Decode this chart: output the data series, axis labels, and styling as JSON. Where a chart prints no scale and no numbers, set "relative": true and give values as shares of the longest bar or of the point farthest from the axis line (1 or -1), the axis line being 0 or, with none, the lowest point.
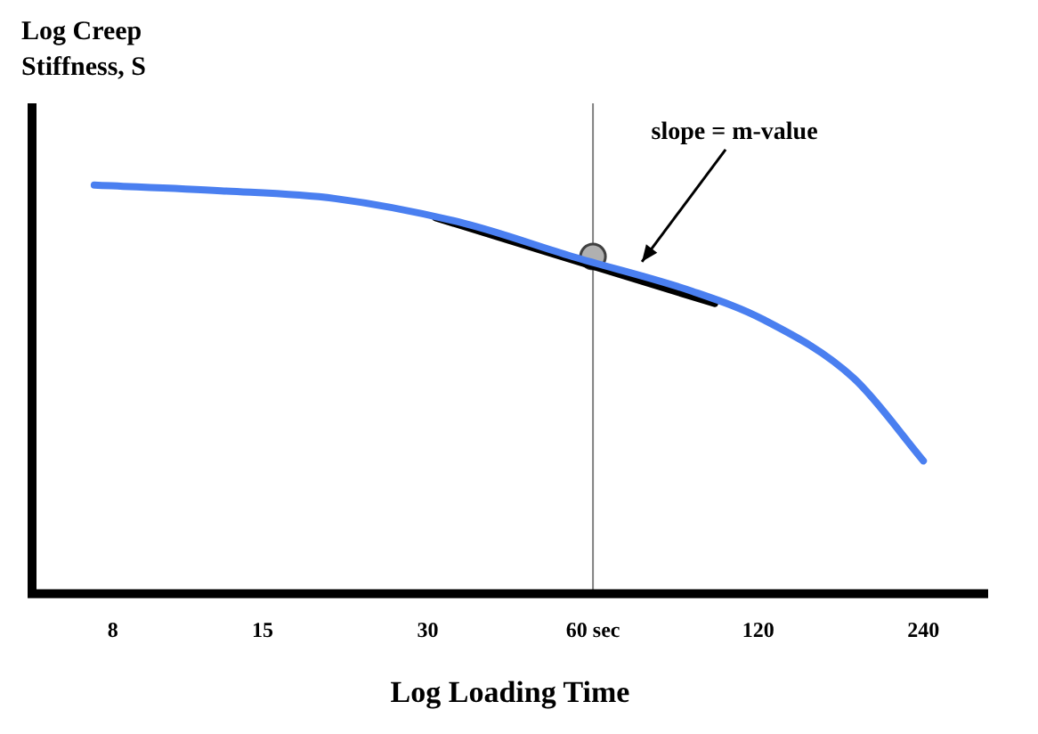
{
  "chart_data": {
    "type": "line",
    "relative": true,
    "xlabel": "Log Loading Time",
    "ylabel": "Log Creep Stiffness, S",
    "log": "x",
    "xlim": [
      5.7,
      315
    ],
    "xticks": [
      8,
      15,
      30,
      {
        "value": 60,
        "label": "60 sec"
      },
      120,
      240
    ],
    "series": [
      {
        "type": "line",
        "color": "#4a7ff0",
        "x": [
          7.4,
          12.6,
          20.3,
          35,
          55,
          91,
          123,
          179,
          240
        ],
        "values": [
          1,
          0.986,
          0.967,
          0.906,
          0.825,
          0.74,
          0.67,
          0.528,
          0.325
        ]
      },
      {
        "type": "line",
        "color": "#000000",
        "x": [
          31,
          100
        ],
        "values": [
          0.92,
          0.71
        ]
      },
      {
        "type": "scatter",
        "color": "#b0b0b0",
        "marker": "circle",
        "x": [
          60
        ],
        "values": [
          0.825
        ]
      }
    ],
    "ref_lines": [
      {
        "axis": "x",
        "value": 60,
        "color": "#808080"
      }
    ],
    "annotations": [
      "slope = m-value"
    ],
    "grid": false,
    "legend": false
  }
}
